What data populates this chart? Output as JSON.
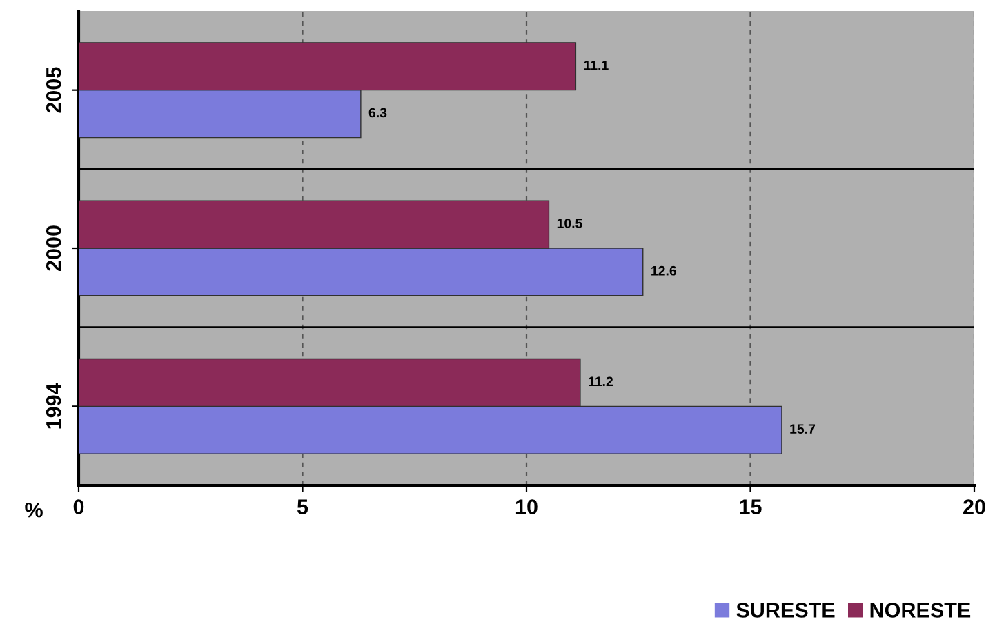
{
  "chart_data": {
    "type": "bar",
    "orientation": "horizontal",
    "categories": [
      "2005",
      "2000",
      "1994"
    ],
    "series": [
      {
        "name": "SURESTE",
        "color": "#7b7bdc",
        "values": [
          6.3,
          12.6,
          15.7
        ]
      },
      {
        "name": "NORESTE",
        "color": "#8b2a58",
        "values": [
          11.1,
          10.5,
          11.2
        ]
      }
    ],
    "xlabel": "%",
    "xlim": [
      0,
      20
    ],
    "xticks": [
      0,
      5,
      10,
      15,
      20
    ],
    "grid": "x",
    "legend": "bottom right",
    "data_labels": true
  }
}
